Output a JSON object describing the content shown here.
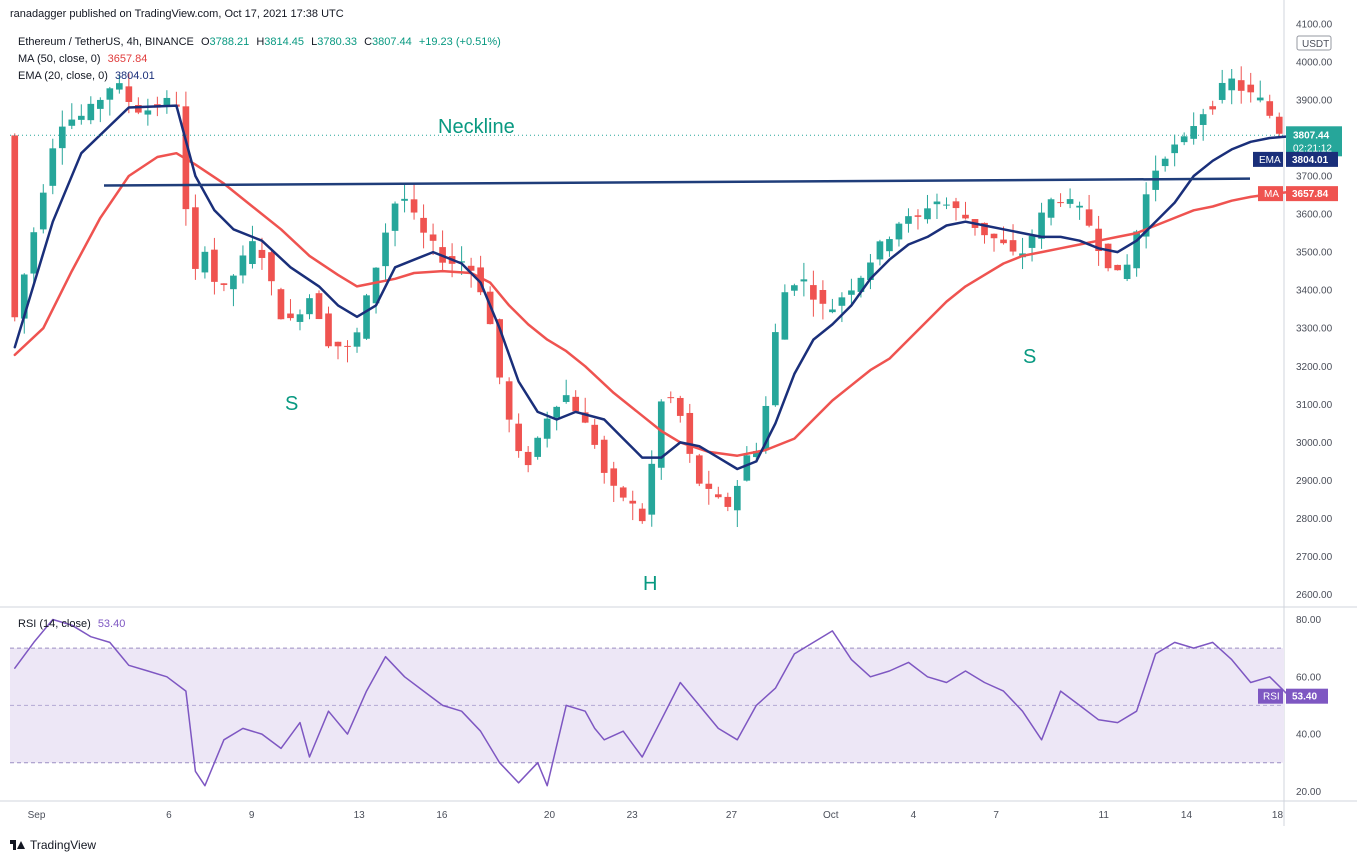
{
  "header": {
    "published_by": "ranadagger published on TradingView.com, Oct 17, 2021 17:38 UTC"
  },
  "legend": {
    "symbol_line": "Ethereum / TetherUS, 4h, BINANCE",
    "ohlc": {
      "o_label": "O",
      "o": "3788.21",
      "h_label": "H",
      "h": "3814.45",
      "l_label": "L",
      "l": "3780.33",
      "c_label": "C",
      "c": "3807.44",
      "change": "+19.23 (+0.51%)"
    },
    "ma_label": "MA (50, close, 0)",
    "ma_value": "3657.84",
    "ema_label": "EMA (20, close, 0)",
    "ema_value": "3804.01",
    "rsi_label": "RSI (14, close)",
    "rsi_value": "53.40"
  },
  "footer": {
    "brand": "TradingView"
  },
  "colors": {
    "up": "#26a69a",
    "down": "#ef5350",
    "ema": "#1a2f7a",
    "ma": "#ef5350",
    "rsi": "#7e57c2",
    "rsi_band": "#ede7f6",
    "neckline": "#1f3d7a",
    "annotation": "#089981",
    "price_tag": "#26a69a"
  },
  "chart_data": {
    "type": "candlestick",
    "title": "Ethereum / TetherUS, 4h, BINANCE",
    "currency_label": "USDT",
    "price_axis": {
      "ticks": [
        "4100.00",
        "4000.00",
        "3900.00",
        "3800.00",
        "3700.00",
        "3600.00",
        "3500.00",
        "3400.00",
        "3300.00",
        "3200.00",
        "3100.00",
        "3000.00",
        "2900.00",
        "2800.00",
        "2700.00",
        "2600.00"
      ],
      "range": [
        2570,
        4110
      ]
    },
    "rsi_axis": {
      "ticks": [
        "80.00",
        "60.00",
        "40.00",
        "20.00"
      ],
      "range": [
        17,
        84
      ],
      "bands": [
        70,
        30
      ]
    },
    "x_ticks": [
      "Sep",
      "6",
      "9",
      "13",
      "16",
      "20",
      "23",
      "27",
      "Oct",
      "4",
      "7",
      "11",
      "14",
      "18"
    ],
    "price_tags": {
      "last_price": "3807.44",
      "countdown": "02:21:12",
      "ema_tag": "EMA",
      "ema_value": "3804.01",
      "ma_tag": "MA",
      "ma_value": "3657.84",
      "rsi_tag": "RSI",
      "rsi_value": "53.40"
    },
    "annotations": {
      "neckline_label": "Neckline",
      "neckline_start_value": 3675,
      "neckline_end_value": 3693,
      "left_shoulder": "S",
      "head": "H",
      "right_shoulder": "S"
    },
    "price_path": [
      [
        0,
        3270
      ],
      [
        5,
        3840
      ],
      [
        8,
        3860
      ],
      [
        11,
        3950
      ],
      [
        13,
        3880
      ],
      [
        14,
        3870
      ],
      [
        17,
        3900
      ],
      [
        18,
        3880
      ],
      [
        19,
        3330
      ],
      [
        20,
        3560
      ],
      [
        22,
        3380
      ],
      [
        26,
        3540
      ],
      [
        27,
        3450
      ],
      [
        29,
        3300
      ],
      [
        32,
        3400
      ],
      [
        33,
        3270
      ],
      [
        36,
        3240
      ],
      [
        38,
        3420
      ],
      [
        40,
        3600
      ],
      [
        41,
        3660
      ],
      [
        42,
        3620
      ],
      [
        43,
        3560
      ],
      [
        46,
        3470
      ],
      [
        48,
        3480
      ],
      [
        50,
        3380
      ],
      [
        52,
        3100
      ],
      [
        54,
        2920
      ],
      [
        57,
        3100
      ],
      [
        59,
        3130
      ],
      [
        60,
        3050
      ],
      [
        61,
        3040
      ],
      [
        63,
        2880
      ],
      [
        65,
        2850
      ],
      [
        67,
        2780
      ],
      [
        68,
        3100
      ],
      [
        70,
        3120
      ],
      [
        72,
        2910
      ],
      [
        74,
        2850
      ],
      [
        76,
        2830
      ],
      [
        77,
        2950
      ],
      [
        79,
        3000
      ],
      [
        81,
        3380
      ],
      [
        83,
        3440
      ],
      [
        86,
        3340
      ],
      [
        88,
        3400
      ],
      [
        89,
        3420
      ],
      [
        91,
        3500
      ],
      [
        93,
        3560
      ],
      [
        94,
        3600
      ],
      [
        95,
        3570
      ],
      [
        97,
        3640
      ],
      [
        99,
        3620
      ],
      [
        101,
        3580
      ],
      [
        103,
        3540
      ],
      [
        104,
        3530
      ],
      [
        106,
        3480
      ],
      [
        107,
        3520
      ],
      [
        109,
        3620
      ],
      [
        110,
        3650
      ],
      [
        113,
        3600
      ],
      [
        115,
        3490
      ],
      [
        117,
        3420
      ],
      [
        119,
        3600
      ],
      [
        120,
        3700
      ],
      [
        122,
        3780
      ],
      [
        123,
        3770
      ],
      [
        125,
        3860
      ],
      [
        127,
        3900
      ],
      [
        128,
        3960
      ],
      [
        130,
        3920
      ],
      [
        132,
        3890
      ],
      [
        133,
        3830
      ],
      [
        134,
        3807
      ]
    ],
    "ema_path": [
      [
        0,
        3250
      ],
      [
        4,
        3580
      ],
      [
        7,
        3760
      ],
      [
        12,
        3880
      ],
      [
        17,
        3885
      ],
      [
        19,
        3700
      ],
      [
        21,
        3610
      ],
      [
        23,
        3560
      ],
      [
        26,
        3530
      ],
      [
        29,
        3460
      ],
      [
        32,
        3410
      ],
      [
        34,
        3360
      ],
      [
        36,
        3330
      ],
      [
        38,
        3360
      ],
      [
        40,
        3460
      ],
      [
        42,
        3480
      ],
      [
        44,
        3500
      ],
      [
        47,
        3470
      ],
      [
        49,
        3420
      ],
      [
        51,
        3300
      ],
      [
        53,
        3160
      ],
      [
        55,
        3080
      ],
      [
        57,
        3060
      ],
      [
        59,
        3080
      ],
      [
        62,
        3060
      ],
      [
        64,
        3010
      ],
      [
        66,
        2960
      ],
      [
        68,
        2960
      ],
      [
        70,
        3000
      ],
      [
        72,
        2990
      ],
      [
        74,
        2960
      ],
      [
        76,
        2930
      ],
      [
        78,
        2950
      ],
      [
        80,
        3050
      ],
      [
        82,
        3180
      ],
      [
        84,
        3270
      ],
      [
        86,
        3310
      ],
      [
        88,
        3360
      ],
      [
        90,
        3430
      ],
      [
        92,
        3480
      ],
      [
        94,
        3520
      ],
      [
        96,
        3540
      ],
      [
        98,
        3570
      ],
      [
        100,
        3580
      ],
      [
        102,
        3570
      ],
      [
        104,
        3560
      ],
      [
        106,
        3550
      ],
      [
        108,
        3540
      ],
      [
        110,
        3540
      ],
      [
        112,
        3530
      ],
      [
        114,
        3510
      ],
      [
        116,
        3500
      ],
      [
        118,
        3530
      ],
      [
        120,
        3580
      ],
      [
        122,
        3630
      ],
      [
        124,
        3700
      ],
      [
        126,
        3740
      ],
      [
        128,
        3770
      ],
      [
        130,
        3790
      ],
      [
        132,
        3800
      ],
      [
        134,
        3804
      ]
    ],
    "ma_path": [
      [
        0,
        3230
      ],
      [
        3,
        3300
      ],
      [
        6,
        3450
      ],
      [
        9,
        3590
      ],
      [
        12,
        3700
      ],
      [
        15,
        3750
      ],
      [
        17,
        3760
      ],
      [
        19,
        3730
      ],
      [
        22,
        3680
      ],
      [
        25,
        3620
      ],
      [
        28,
        3560
      ],
      [
        31,
        3490
      ],
      [
        34,
        3440
      ],
      [
        36,
        3410
      ],
      [
        38,
        3420
      ],
      [
        40,
        3430
      ],
      [
        42,
        3445
      ],
      [
        45,
        3450
      ],
      [
        48,
        3445
      ],
      [
        50,
        3420
      ],
      [
        52,
        3360
      ],
      [
        54,
        3310
      ],
      [
        56,
        3270
      ],
      [
        58,
        3240
      ],
      [
        60,
        3200
      ],
      [
        63,
        3130
      ],
      [
        66,
        3070
      ],
      [
        68,
        3030
      ],
      [
        70,
        3000
      ],
      [
        73,
        2975
      ],
      [
        76,
        2965
      ],
      [
        79,
        2980
      ],
      [
        82,
        3010
      ],
      [
        84,
        3060
      ],
      [
        86,
        3110
      ],
      [
        88,
        3150
      ],
      [
        90,
        3190
      ],
      [
        92,
        3220
      ],
      [
        94,
        3270
      ],
      [
        96,
        3320
      ],
      [
        98,
        3370
      ],
      [
        100,
        3410
      ],
      [
        102,
        3440
      ],
      [
        104,
        3470
      ],
      [
        106,
        3490
      ],
      [
        108,
        3500
      ],
      [
        110,
        3510
      ],
      [
        112,
        3520
      ],
      [
        114,
        3530
      ],
      [
        116,
        3540
      ],
      [
        118,
        3550
      ],
      [
        120,
        3570
      ],
      [
        122,
        3590
      ],
      [
        124,
        3610
      ],
      [
        126,
        3620
      ],
      [
        128,
        3635
      ],
      [
        130,
        3645
      ],
      [
        132,
        3652
      ],
      [
        134,
        3658
      ]
    ],
    "rsi_path": [
      [
        0,
        63
      ],
      [
        2,
        72
      ],
      [
        4,
        80
      ],
      [
        6,
        78
      ],
      [
        8,
        74
      ],
      [
        10,
        72
      ],
      [
        12,
        64
      ],
      [
        14,
        62
      ],
      [
        16,
        60
      ],
      [
        18,
        55
      ],
      [
        19,
        27
      ],
      [
        20,
        22
      ],
      [
        22,
        38
      ],
      [
        24,
        42
      ],
      [
        26,
        40
      ],
      [
        28,
        35
      ],
      [
        30,
        44
      ],
      [
        31,
        32
      ],
      [
        33,
        48
      ],
      [
        35,
        40
      ],
      [
        37,
        55
      ],
      [
        39,
        67
      ],
      [
        41,
        60
      ],
      [
        43,
        55
      ],
      [
        45,
        50
      ],
      [
        47,
        48
      ],
      [
        49,
        41
      ],
      [
        51,
        30
      ],
      [
        53,
        23
      ],
      [
        55,
        30
      ],
      [
        56,
        22
      ],
      [
        58,
        50
      ],
      [
        60,
        48
      ],
      [
        61,
        42
      ],
      [
        62,
        38
      ],
      [
        64,
        41
      ],
      [
        66,
        32
      ],
      [
        68,
        45
      ],
      [
        70,
        58
      ],
      [
        72,
        50
      ],
      [
        74,
        42
      ],
      [
        76,
        38
      ],
      [
        78,
        50
      ],
      [
        80,
        56
      ],
      [
        82,
        68
      ],
      [
        84,
        72
      ],
      [
        86,
        76
      ],
      [
        88,
        66
      ],
      [
        90,
        60
      ],
      [
        92,
        62
      ],
      [
        94,
        65
      ],
      [
        96,
        60
      ],
      [
        98,
        58
      ],
      [
        100,
        62
      ],
      [
        102,
        58
      ],
      [
        104,
        55
      ],
      [
        106,
        48
      ],
      [
        108,
        38
      ],
      [
        110,
        55
      ],
      [
        112,
        50
      ],
      [
        114,
        45
      ],
      [
        116,
        44
      ],
      [
        118,
        48
      ],
      [
        120,
        68
      ],
      [
        122,
        72
      ],
      [
        124,
        70
      ],
      [
        126,
        72
      ],
      [
        128,
        66
      ],
      [
        130,
        58
      ],
      [
        132,
        60
      ],
      [
        134,
        53.4
      ]
    ]
  }
}
